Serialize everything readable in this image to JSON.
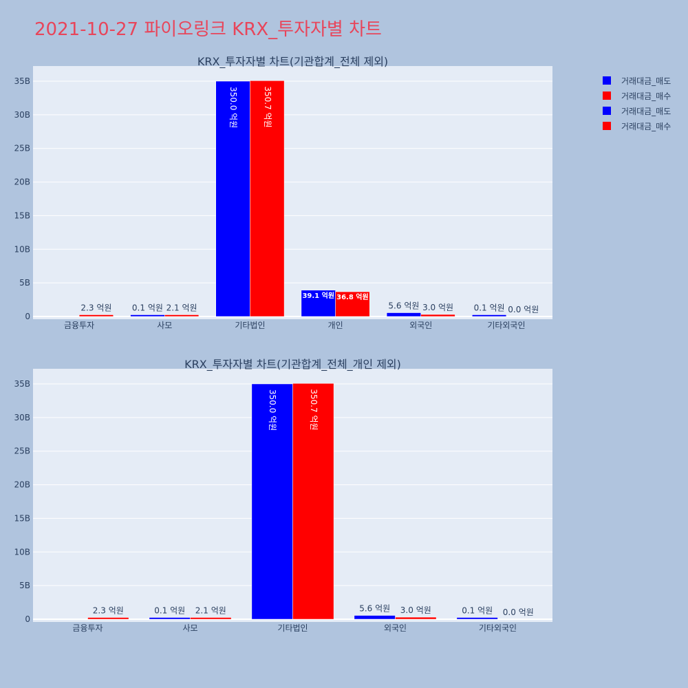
{
  "title": "2021-10-27 파이오링크 KRX_투자자별 차트",
  "legend": [
    {
      "label": "거래대금_매도",
      "color": "#0000ff"
    },
    {
      "label": "거래대금_매수",
      "color": "#ff0000"
    },
    {
      "label": "거래대금_매도",
      "color": "#0000ff"
    },
    {
      "label": "거래대금_매수",
      "color": "#ff0000"
    }
  ],
  "chart_data": [
    {
      "type": "bar",
      "title": "KRX_투자자별 차트(기관합계_전체 제외)",
      "categories": [
        "금융투자",
        "사모",
        "기타법인",
        "개인",
        "외국인",
        "기타외국인"
      ],
      "yticks": [
        0,
        5000000000,
        10000000000,
        15000000000,
        20000000000,
        25000000000,
        30000000000,
        35000000000
      ],
      "ytick_labels": [
        "0",
        "5B",
        "10B",
        "15B",
        "20B",
        "25B",
        "30B",
        "35B"
      ],
      "ylim": [
        0,
        37000000000
      ],
      "grid": true,
      "series": [
        {
          "name": "거래대금_매도",
          "color": "#0000ff",
          "values": [
            0,
            10000000,
            35000000000,
            3910000000,
            560000000,
            10000000
          ],
          "labels": [
            "",
            "0.1 억원",
            "350.0 억원",
            "39.1 억원",
            "5.6 억원",
            "0.1 억원"
          ]
        },
        {
          "name": "거래대금_매수",
          "color": "#ff0000",
          "values": [
            230000000,
            210000000,
            35070000000,
            3680000000,
            300000000,
            0
          ],
          "labels": [
            "2.3 억원",
            "2.1 억원",
            "350.7 억원",
            "36.8 억원",
            "3.0 억원",
            "0.0 억원"
          ]
        }
      ]
    },
    {
      "type": "bar",
      "title": "KRX_투자자별 차트(기관합계_전체_개인 제외)",
      "categories": [
        "금융투자",
        "사모",
        "기타법인",
        "외국인",
        "기타외국인"
      ],
      "yticks": [
        0,
        5000000000,
        10000000000,
        15000000000,
        20000000000,
        25000000000,
        30000000000,
        35000000000
      ],
      "ytick_labels": [
        "0",
        "5B",
        "10B",
        "15B",
        "20B",
        "25B",
        "30B",
        "35B"
      ],
      "ylim": [
        0,
        37000000000
      ],
      "grid": true,
      "series": [
        {
          "name": "거래대금_매도",
          "color": "#0000ff",
          "values": [
            0,
            10000000,
            35000000000,
            560000000,
            10000000
          ],
          "labels": [
            "",
            "0.1 억원",
            "350.0 억원",
            "5.6 억원",
            "0.1 억원"
          ]
        },
        {
          "name": "거래대금_매수",
          "color": "#ff0000",
          "values": [
            230000000,
            210000000,
            35070000000,
            300000000,
            0
          ],
          "labels": [
            "2.3 억원",
            "2.1 억원",
            "350.7 억원",
            "3.0 억원",
            "0.0 억원"
          ]
        }
      ]
    }
  ]
}
